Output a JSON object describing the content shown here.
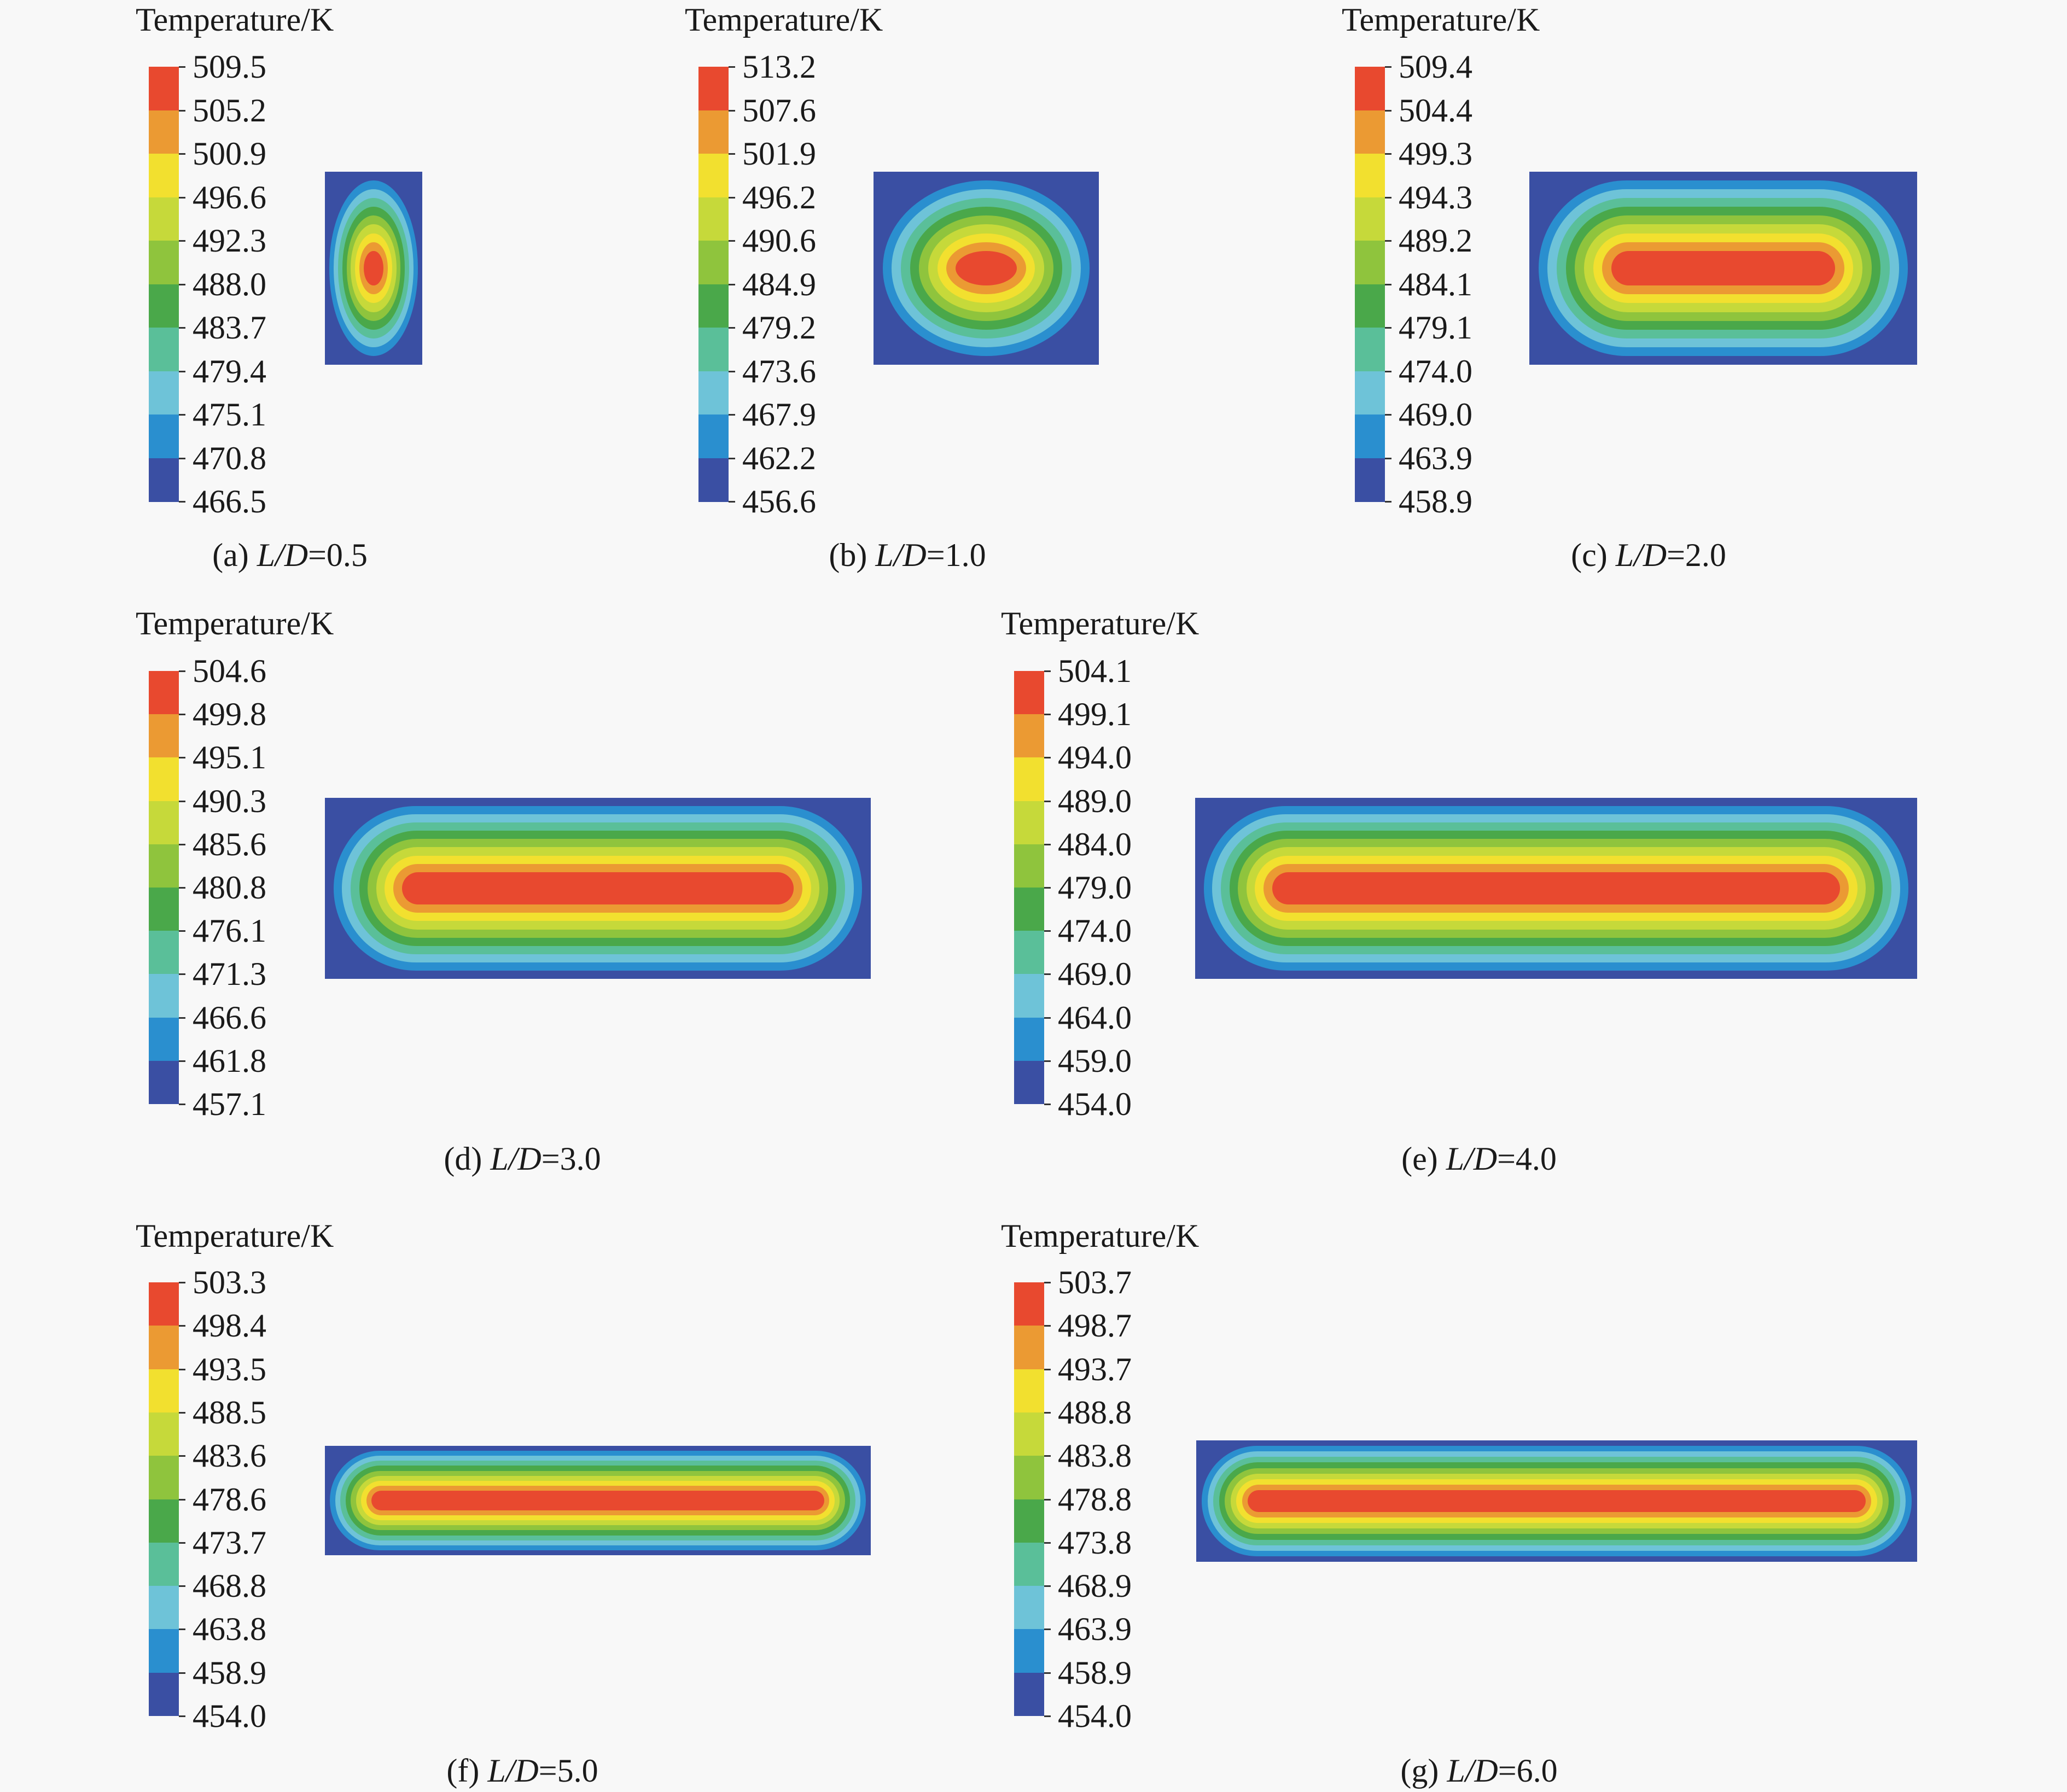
{
  "colors": [
    "#3a4fa3",
    "#2a8fcf",
    "#6ec3d8",
    "#5abf99",
    "#4aa84a",
    "#8fc43d",
    "#c6d93a",
    "#f2e02f",
    "#eb9a33",
    "#e8492f"
  ],
  "panels": [
    {
      "id": "a",
      "title": "Temperature/K",
      "ticks": [
        "509.5",
        "505.2",
        "500.9",
        "496.6",
        "492.3",
        "488.0",
        "483.7",
        "479.4",
        "475.1",
        "470.8",
        "466.5"
      ],
      "caption_prefix": "(a) ",
      "caption_var": "L/D",
      "caption_value": "=0.5",
      "ld": 0.5
    },
    {
      "id": "b",
      "title": "Temperature/K",
      "ticks": [
        "513.2",
        "507.6",
        "501.9",
        "496.2",
        "490.6",
        "484.9",
        "479.2",
        "473.6",
        "467.9",
        "462.2",
        "456.6"
      ],
      "caption_prefix": "(b) ",
      "caption_var": "L/D",
      "caption_value": "=1.0",
      "ld": 1.0
    },
    {
      "id": "c",
      "title": "Temperature/K",
      "ticks": [
        "509.4",
        "504.4",
        "499.3",
        "494.3",
        "489.2",
        "484.1",
        "479.1",
        "474.0",
        "469.0",
        "463.9",
        "458.9"
      ],
      "caption_prefix": "(c) ",
      "caption_var": "L/D",
      "caption_value": "=2.0",
      "ld": 2.0
    },
    {
      "id": "d",
      "title": "Temperature/K",
      "ticks": [
        "504.6",
        "499.8",
        "495.1",
        "490.3",
        "485.6",
        "480.8",
        "476.1",
        "471.3",
        "466.6",
        "461.8",
        "457.1"
      ],
      "caption_prefix": "(d) ",
      "caption_var": "L/D",
      "caption_value": "=3.0",
      "ld": 3.0
    },
    {
      "id": "e",
      "title": "Temperature/K",
      "ticks": [
        "504.1",
        "499.1",
        "494.0",
        "489.0",
        "484.0",
        "479.0",
        "474.0",
        "469.0",
        "464.0",
        "459.0",
        "454.0"
      ],
      "caption_prefix": "(e) ",
      "caption_var": "L/D",
      "caption_value": "=4.0",
      "ld": 4.0
    },
    {
      "id": "f",
      "title": "Temperature/K",
      "ticks": [
        "503.3",
        "498.4",
        "493.5",
        "488.5",
        "483.6",
        "478.6",
        "473.7",
        "468.8",
        "463.8",
        "458.9",
        "454.0"
      ],
      "caption_prefix": "(f) ",
      "caption_var": "L/D",
      "caption_value": "=5.0",
      "ld": 5.0
    },
    {
      "id": "g",
      "title": "Temperature/K",
      "ticks": [
        "503.7",
        "498.7",
        "493.7",
        "488.8",
        "483.8",
        "478.8",
        "473.8",
        "468.9",
        "463.9",
        "458.9",
        "454.0"
      ],
      "caption_prefix": "(g) ",
      "caption_var": "L/D",
      "caption_value": "=6.0",
      "ld": 6.0
    }
  ]
}
